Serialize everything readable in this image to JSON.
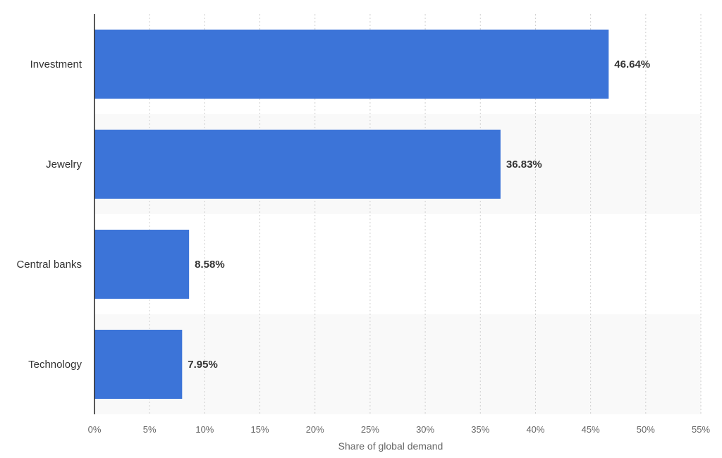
{
  "chart_data": {
    "type": "bar",
    "orientation": "horizontal",
    "categories": [
      "Investment",
      "Jewelry",
      "Central banks",
      "Technology"
    ],
    "values": [
      46.64,
      36.83,
      8.58,
      7.95
    ],
    "value_labels": [
      "46.64%",
      "36.83%",
      "8.58%",
      "7.95%"
    ],
    "xlabel": "Share of global demand",
    "ylabel": "",
    "xlim": [
      0,
      55
    ],
    "ticks": [
      0,
      5,
      10,
      15,
      20,
      25,
      30,
      35,
      40,
      45,
      50,
      55
    ],
    "tick_labels": [
      "0%",
      "5%",
      "10%",
      "15%",
      "20%",
      "25%",
      "30%",
      "35%",
      "40%",
      "45%",
      "50%",
      "55%"
    ],
    "grid": true,
    "bar_color": "#3c74d8",
    "band_color": "#f9f9f9"
  }
}
